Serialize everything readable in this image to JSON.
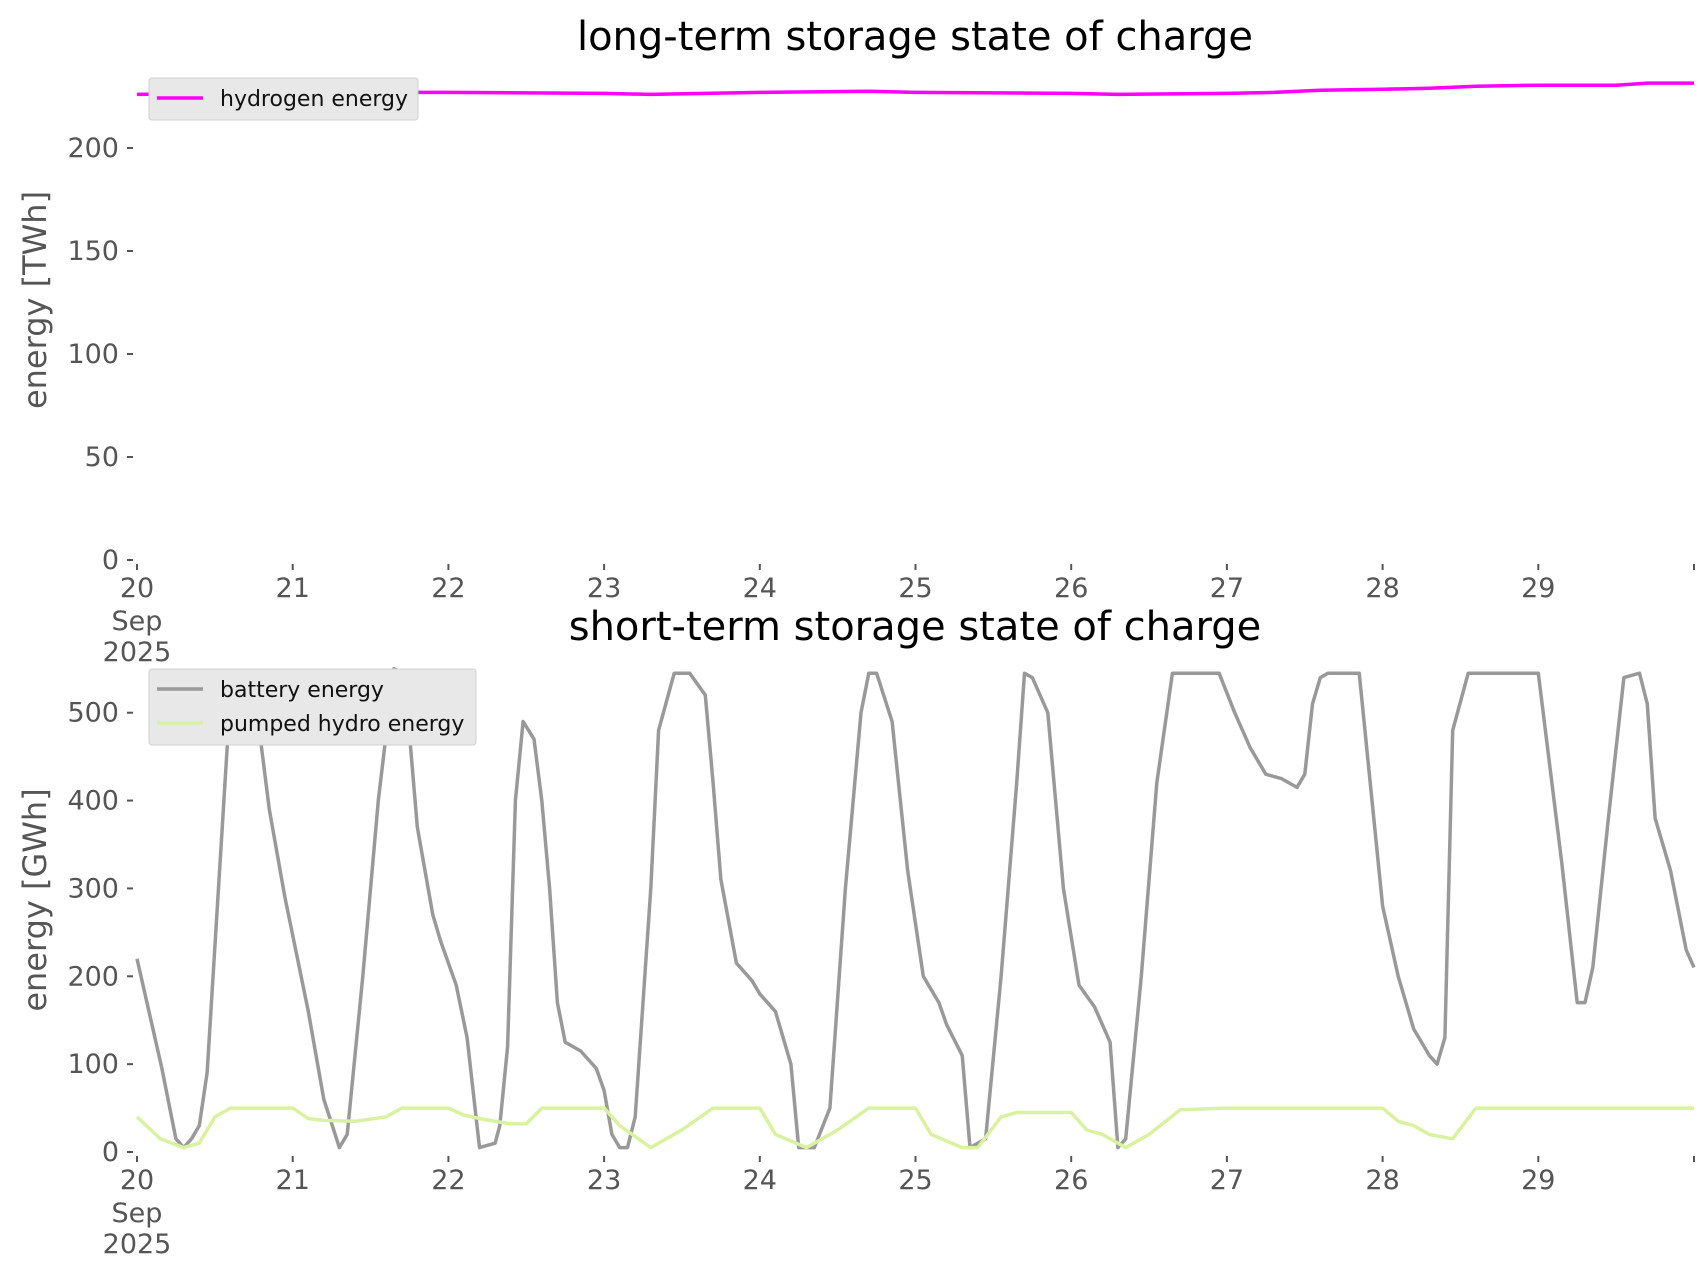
{
  "chart_data": [
    {
      "type": "line",
      "title": "long-term storage state of charge",
      "ylabel": "energy [TWh]",
      "ylim": [
        0,
        233
      ],
      "yticks": [
        0,
        50,
        100,
        150,
        200
      ],
      "xticks": [
        "20",
        "21",
        "22",
        "23",
        "24",
        "25",
        "26",
        "27",
        "28",
        "29"
      ],
      "xtick_first_extra": [
        "Sep",
        "2025"
      ],
      "x": [
        20.0,
        21.0,
        22.0,
        23.0,
        23.3,
        24.0,
        24.7,
        25.0,
        26.0,
        26.3,
        27.0,
        27.3,
        27.6,
        28.0,
        28.3,
        28.6,
        29.0,
        29.5,
        29.7,
        30.0
      ],
      "series": [
        {
          "name": "hydrogen energy",
          "color": "#ff00ff",
          "values": [
            226,
            227,
            227,
            226.5,
            226,
            227,
            227.5,
            227,
            226.5,
            226,
            226.5,
            227,
            228,
            228.5,
            229,
            230,
            230.5,
            230.5,
            231.5,
            231.5
          ]
        }
      ],
      "legend": "top-left",
      "grid": false
    },
    {
      "type": "line",
      "title": "short-term storage state of charge",
      "ylabel": "energy [GWh]",
      "ylim": [
        0,
        560
      ],
      "yticks": [
        0,
        100,
        200,
        300,
        400,
        500
      ],
      "xticks": [
        "20",
        "21",
        "22",
        "23",
        "24",
        "25",
        "26",
        "27",
        "28",
        "29"
      ],
      "xtick_first_extra": [
        "Sep",
        "2025"
      ],
      "legend": "top-left",
      "grid": false,
      "series": [
        {
          "name": "battery energy",
          "color": "#999999",
          "x": [
            20.0,
            20.16,
            20.25,
            20.3,
            20.35,
            20.4,
            20.45,
            20.6,
            20.65,
            20.7,
            20.75,
            20.85,
            20.95,
            21.1,
            21.2,
            21.3,
            21.35,
            21.45,
            21.55,
            21.65,
            21.7,
            21.75,
            21.8,
            21.9,
            21.95,
            22.05,
            22.12,
            22.2,
            22.3,
            22.33,
            22.38,
            22.43,
            22.48,
            22.55,
            22.6,
            22.65,
            22.7,
            22.75,
            22.85,
            22.95,
            23.0,
            23.05,
            23.1,
            23.15,
            23.2,
            23.3,
            23.35,
            23.45,
            23.55,
            23.65,
            23.7,
            23.75,
            23.85,
            23.95,
            24.0,
            24.1,
            24.2,
            24.25,
            24.35,
            24.45,
            24.55,
            24.65,
            24.7,
            24.75,
            24.85,
            24.95,
            25.05,
            25.15,
            25.2,
            25.3,
            25.35,
            25.45,
            25.55,
            25.65,
            25.7,
            25.75,
            25.85,
            25.95,
            26.05,
            26.15,
            26.25,
            26.3,
            26.35,
            26.45,
            26.55,
            26.65,
            26.7,
            26.75,
            26.8,
            26.95,
            27.05,
            27.15,
            27.25,
            27.35,
            27.45,
            27.5,
            27.55,
            27.6,
            27.65,
            27.7,
            27.75,
            27.85,
            28.0,
            28.1,
            28.2,
            28.3,
            28.35,
            28.4,
            28.45,
            28.55,
            28.65,
            28.75,
            28.85,
            29.0,
            29.15,
            29.25,
            29.3,
            29.35,
            29.45,
            29.55,
            29.65,
            29.7,
            29.75,
            29.85,
            29.95,
            30.0
          ],
          "values": [
            220,
            95,
            15,
            5,
            15,
            30,
            90,
            520,
            545,
            545,
            530,
            390,
            290,
            160,
            60,
            5,
            20,
            200,
            400,
            550,
            545,
            475,
            370,
            270,
            240,
            190,
            130,
            5,
            10,
            30,
            120,
            400,
            490,
            470,
            400,
            300,
            170,
            125,
            115,
            95,
            70,
            20,
            5,
            5,
            40,
            300,
            480,
            545,
            545,
            520,
            420,
            310,
            215,
            195,
            180,
            160,
            100,
            5,
            5,
            50,
            300,
            500,
            545,
            545,
            490,
            320,
            200,
            170,
            145,
            110,
            5,
            15,
            200,
            420,
            545,
            540,
            500,
            300,
            190,
            165,
            125,
            5,
            15,
            200,
            420,
            545,
            545,
            545,
            545,
            545,
            500,
            460,
            430,
            425,
            415,
            430,
            510,
            540,
            545,
            545,
            545,
            545,
            280,
            200,
            140,
            110,
            100,
            130,
            480,
            545,
            545,
            545,
            545,
            545,
            330,
            170,
            170,
            210,
            380,
            540,
            545,
            510,
            380,
            320,
            230,
            210
          ]
        },
        {
          "name": "pumped hydro energy",
          "color": "#d9f2a0",
          "x": [
            20.0,
            20.15,
            20.3,
            20.4,
            20.5,
            20.6,
            20.75,
            21.0,
            21.1,
            21.2,
            21.4,
            21.6,
            21.7,
            22.0,
            22.1,
            22.2,
            22.4,
            22.5,
            22.6,
            23.0,
            23.1,
            23.3,
            23.5,
            23.7,
            24.0,
            24.1,
            24.3,
            24.5,
            24.7,
            25.0,
            25.1,
            25.3,
            25.4,
            25.55,
            25.65,
            25.8,
            26.0,
            26.1,
            26.2,
            26.35,
            26.5,
            26.7,
            27.0,
            28.0,
            28.1,
            28.2,
            28.3,
            28.45,
            28.6,
            30.0
          ],
          "values": [
            40,
            15,
            5,
            10,
            40,
            50,
            50,
            50,
            38,
            36,
            35,
            40,
            50,
            50,
            42,
            38,
            32,
            32,
            50,
            50,
            30,
            5,
            25,
            50,
            50,
            20,
            5,
            25,
            50,
            50,
            20,
            5,
            5,
            40,
            45,
            45,
            45,
            25,
            20,
            5,
            20,
            48,
            50,
            50,
            35,
            30,
            20,
            15,
            50,
            50
          ]
        }
      ]
    }
  ]
}
